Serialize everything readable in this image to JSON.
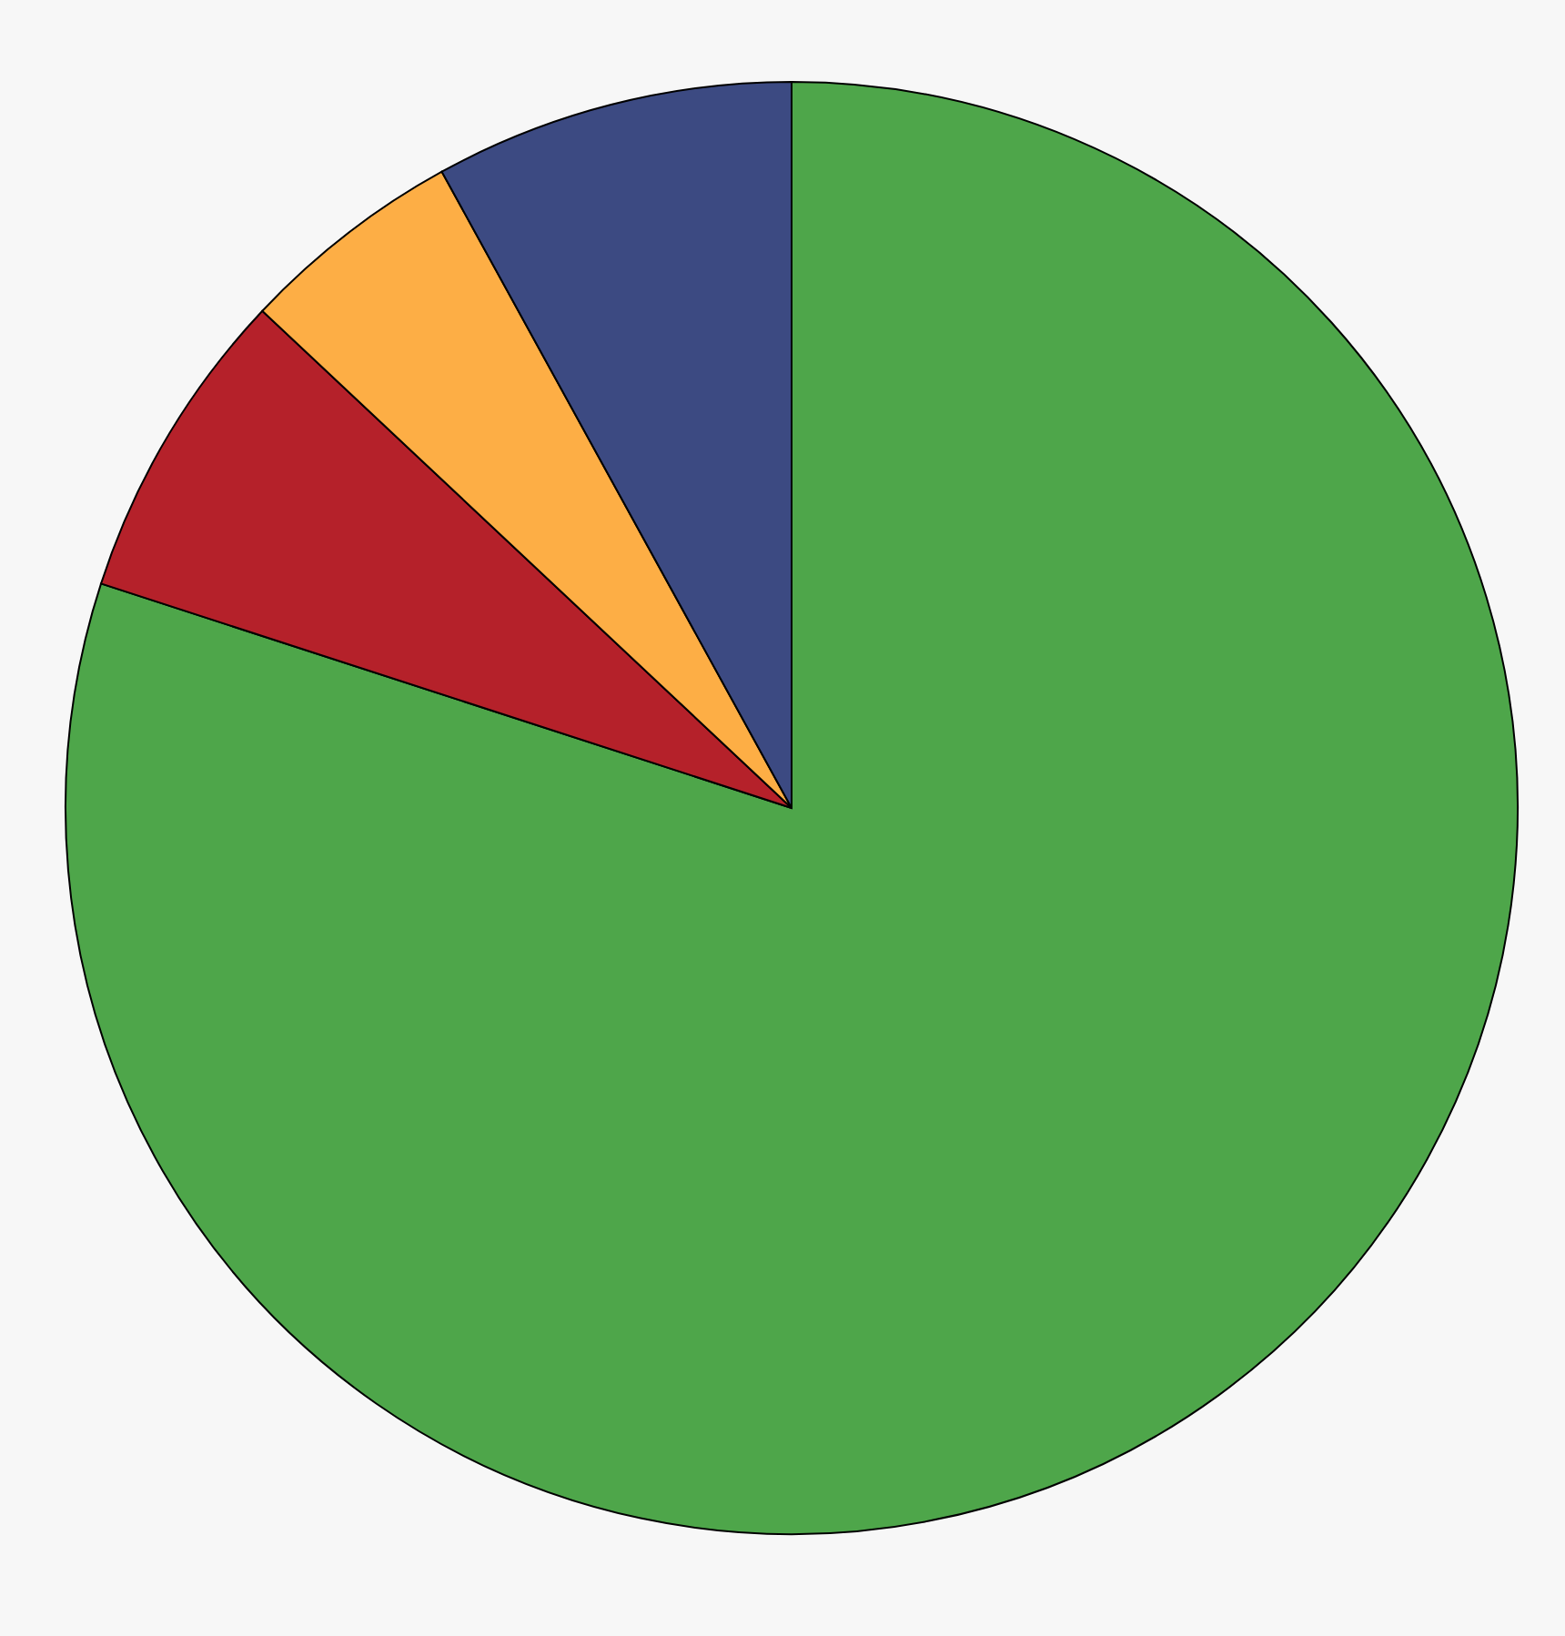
{
  "chart_data": {
    "type": "pie",
    "categories": [
      null,
      null,
      null,
      null
    ],
    "values": [
      80,
      7,
      5,
      8
    ],
    "colors": [
      "#4ea64a",
      "#b5212a",
      "#fdae45",
      "#3c4a82"
    ]
  }
}
